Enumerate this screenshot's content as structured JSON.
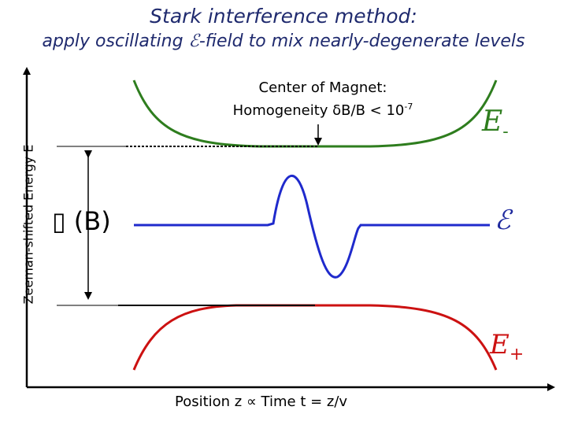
{
  "title": "Stark interference method:",
  "subtitle": {
    "prefix": "apply oscillating ",
    "field_symbol": "ℰ",
    "suffix": "-field to mix nearly-degenerate levels"
  },
  "y_axis_label": "Zeeman-shifted Energy E",
  "x_axis_label": "Position z ∝ Time t = z/v",
  "magnet_note": {
    "line1": "Center of Magnet:",
    "line2_prefix": "Homogeneity δB/B < 10",
    "exponent": "-7"
  },
  "gap_label": "▯ (B)",
  "curve_labels": {
    "e_minus_symbol": "E",
    "e_minus_sub": "-",
    "field_symbol": "ℰ",
    "e_plus_symbol": "E",
    "e_plus_sub": "+"
  },
  "colors": {
    "title": "#1f2a6e",
    "e_minus": "#2e7d1e",
    "field": "#1f2a9e",
    "e_plus": "#cc1111",
    "axes": "#000000"
  }
}
